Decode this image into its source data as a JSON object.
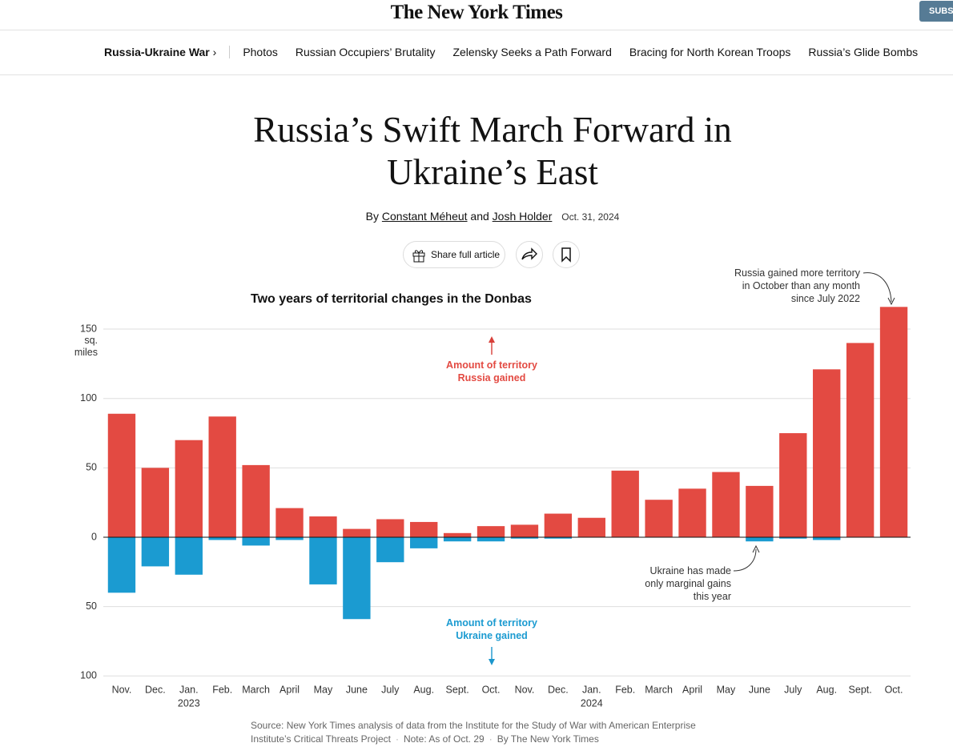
{
  "masthead": {
    "logo": "The New York Times",
    "subscribe": "SUBS"
  },
  "nav": {
    "section": "Russia-Ukraine War",
    "items": [
      "Photos",
      "Russian Occupiers’ Brutality",
      "Zelensky Seeks a Path Forward",
      "Bracing for North Korean Troops",
      "Russia’s Glide Bombs"
    ]
  },
  "headline": "Russia’s Swift March Forward in Ukraine’s East",
  "byline": {
    "by": "By",
    "authors": [
      "Constant Méheut",
      "Josh Holder"
    ],
    "and": "and",
    "date": "Oct. 31, 2024"
  },
  "share": "Share full article",
  "chart_data": {
    "type": "bar",
    "title": "Two years of territorial changes in the Donbas",
    "y_unit": "sq. miles",
    "categories": [
      "Nov.",
      "Dec.",
      "Jan.",
      "Feb.",
      "March",
      "April",
      "May",
      "June",
      "July",
      "Aug.",
      "Sept.",
      "Oct.",
      "Nov.",
      "Dec.",
      "Jan.",
      "Feb.",
      "March",
      "April",
      "May",
      "June",
      "July",
      "Aug.",
      "Sept.",
      "Oct."
    ],
    "year_labels": [
      null,
      null,
      "2023",
      null,
      null,
      null,
      null,
      null,
      null,
      null,
      null,
      null,
      null,
      null,
      "2024",
      null,
      null,
      null,
      null,
      null,
      null,
      null,
      null,
      null
    ],
    "series": [
      {
        "name": "Amount of territory Russia gained",
        "color": "#e34a42",
        "values": [
          89,
          50,
          70,
          87,
          52,
          21,
          15,
          6,
          13,
          11,
          3,
          8,
          9,
          17,
          14,
          48,
          27,
          35,
          47,
          37,
          75,
          121,
          140,
          166
        ]
      },
      {
        "name": "Amount of territory Ukraine gained",
        "color": "#1b9bd1",
        "values": [
          -40,
          -21,
          -27,
          -2,
          -6,
          -2,
          -34,
          -59,
          -18,
          -8,
          -3,
          -3,
          -1,
          -1,
          0,
          0,
          0,
          0,
          0,
          -3,
          -1,
          -2,
          0,
          0
        ]
      }
    ],
    "ylim": [
      -100,
      170
    ],
    "yticks": [
      {
        "value": -100,
        "label": "100"
      },
      {
        "value": -50,
        "label": "50"
      },
      0,
      50,
      100,
      150
    ],
    "grid": true,
    "annotations": [
      "Russia gained more territory in October than any month since July 2022",
      "Ukraine has made only marginal gains this year"
    ]
  },
  "source": "Source: New York Times analysis of data from the Institute for the Study of War with American Enterprise Institute’s Critical Threats Project",
  "note": "Note: As of Oct. 29",
  "credit": "By The New York Times"
}
